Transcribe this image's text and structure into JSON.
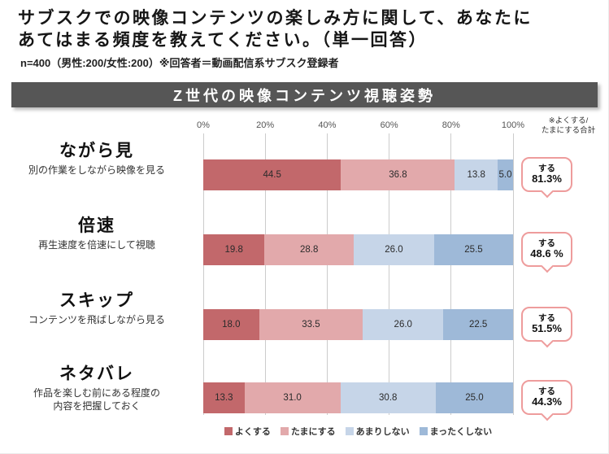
{
  "header": {
    "title_line1": "サブスクでの映像コンテンツの楽しみ方に関して、あなたに",
    "title_line2": "あてはまる頻度を教えてください。（単一回答）",
    "note": "n=400（男性:200/女性:200）※回答者＝動画配信系サブスク登録者"
  },
  "banner": {
    "title": "Z世代の映像コンテンツ視聴姿勢"
  },
  "axis_note": {
    "line1": "※よくする/",
    "line2": "たまにする合計"
  },
  "chart_data": {
    "type": "bar",
    "orientation": "horizontal_stacked",
    "title": "Z世代の映像コンテンツ視聴姿勢",
    "x_ticks": [
      "0%",
      "20%",
      "40%",
      "60%",
      "80%",
      "100%"
    ],
    "xlim": [
      0,
      100
    ],
    "grid": true,
    "legend_position": "bottom",
    "series_names": [
      "よくする",
      "たまにする",
      "あまりしない",
      "まったくしない"
    ],
    "series_colors": [
      "#c2686b",
      "#e2a9ab",
      "#c6d5e8",
      "#9eb9d8"
    ],
    "rows": [
      {
        "label": "ながら見",
        "sublabel": "別の作業をしながら映像を見る",
        "values": [
          44.5,
          36.8,
          13.8,
          5.0
        ],
        "bubble": {
          "line1": "する",
          "line2": "81.3%"
        }
      },
      {
        "label": "倍速",
        "sublabel": "再生速度を倍速にして視聴",
        "values": [
          19.8,
          28.8,
          26.0,
          25.5
        ],
        "bubble": {
          "line1": "する",
          "line2": "48.6 %"
        }
      },
      {
        "label": "スキップ",
        "sublabel": "コンテンツを飛ばしながら見る",
        "values": [
          18.0,
          33.5,
          26.0,
          22.5
        ],
        "bubble": {
          "line1": "する",
          "line2": "51.5%"
        }
      },
      {
        "label": "ネタバレ",
        "sublabel": "作品を楽しむ前にある程度の\n内容を把握しておく",
        "values": [
          13.3,
          31.0,
          30.8,
          25.0
        ],
        "bubble": {
          "line1": "する",
          "line2": "44.3%"
        }
      }
    ],
    "legend": [
      "よくする",
      "たまにする",
      "あまりしない",
      "まったくしない"
    ]
  }
}
